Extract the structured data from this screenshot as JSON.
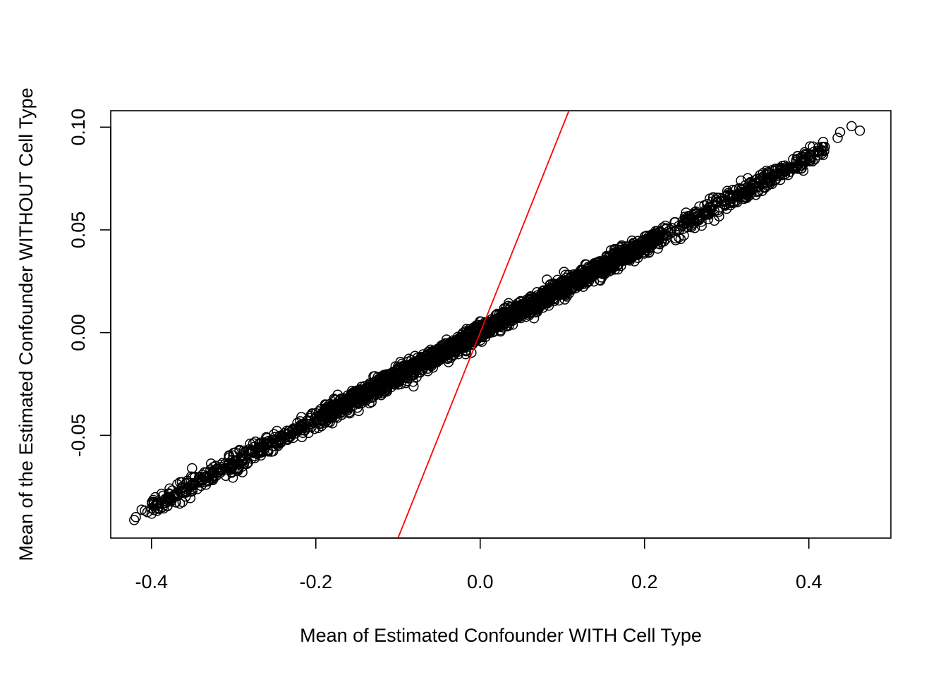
{
  "chart_data": {
    "type": "scatter",
    "xlabel": "Mean of Estimated Confounder WITH Cell Type",
    "ylabel": "Mean of the Estimated Confounder WITHOUT Cell Type",
    "xlim": [
      -0.4496,
      0.4998
    ],
    "ylim": [
      -0.1,
      0.108
    ],
    "x_ticks": [
      -0.4,
      -0.2,
      0.0,
      0.2,
      0.4
    ],
    "x_tick_labels": [
      "-0.4",
      "-0.2",
      "0.0",
      "0.2",
      "0.4"
    ],
    "y_ticks": [
      -0.05,
      0.0,
      0.05,
      0.1
    ],
    "y_tick_labels": [
      "-0.05",
      "0.00",
      "0.05",
      "0.10"
    ],
    "grid": false,
    "marker": "open-circle",
    "point_color": "#000000",
    "reference_line": {
      "type": "abline",
      "intercept": 0,
      "slope": 1,
      "color": "#ff0000"
    },
    "point_cloud": {
      "description_trend": {
        "intercept": 0.0003,
        "slope": 0.2125
      },
      "x_range": [
        -0.42,
        0.46
      ],
      "y_range": [
        -0.091,
        0.1
      ]
    },
    "outlier_points": [
      {
        "x": 0.452,
        "y": 0.1005
      },
      {
        "x": 0.462,
        "y": 0.0983
      },
      {
        "x": 0.438,
        "y": 0.0976
      },
      {
        "x": 0.435,
        "y": 0.0948
      },
      {
        "x": 0.415,
        "y": 0.0889
      },
      {
        "x": 0.405,
        "y": 0.0906
      },
      {
        "x": 0.393,
        "y": 0.0855
      },
      {
        "x": 0.386,
        "y": 0.0858
      },
      {
        "x": -0.421,
        "y": -0.0912
      },
      {
        "x": -0.419,
        "y": -0.0898
      },
      {
        "x": -0.412,
        "y": -0.0862
      },
      {
        "x": -0.405,
        "y": -0.0874
      },
      {
        "x": -0.408,
        "y": -0.0866
      },
      {
        "x": -0.393,
        "y": -0.0867
      },
      {
        "x": -0.39,
        "y": -0.0858
      },
      {
        "x": -0.378,
        "y": -0.0786
      },
      {
        "x": -0.38,
        "y": -0.0813
      },
      {
        "x": -0.372,
        "y": -0.0788
      },
      {
        "x": -0.368,
        "y": -0.0786
      },
      {
        "x": -0.4,
        "y": -0.0855
      },
      {
        "x": 0.325,
        "y": 0.0671
      },
      {
        "x": 0.3,
        "y": 0.0603
      },
      {
        "x": 0.28,
        "y": 0.0597
      },
      {
        "x": 0.12,
        "y": 0.0278
      },
      {
        "x": 0.06,
        "y": 0.0135
      },
      {
        "x": -0.035,
        "y": -0.0055
      },
      {
        "x": -0.16,
        "y": -0.0318
      },
      {
        "x": -0.25,
        "y": -0.0508
      },
      {
        "x": 0.06,
        "y": 0.0092
      },
      {
        "x": 0.13,
        "y": 0.0245
      },
      {
        "x": 0.2,
        "y": 0.0385
      },
      {
        "x": 0.285,
        "y": 0.0545
      },
      {
        "x": -0.1,
        "y": -0.0165
      },
      {
        "x": -0.2,
        "y": -0.0392
      },
      {
        "x": -0.3,
        "y": -0.0585
      },
      {
        "x": -0.35,
        "y": -0.0705
      }
    ]
  }
}
